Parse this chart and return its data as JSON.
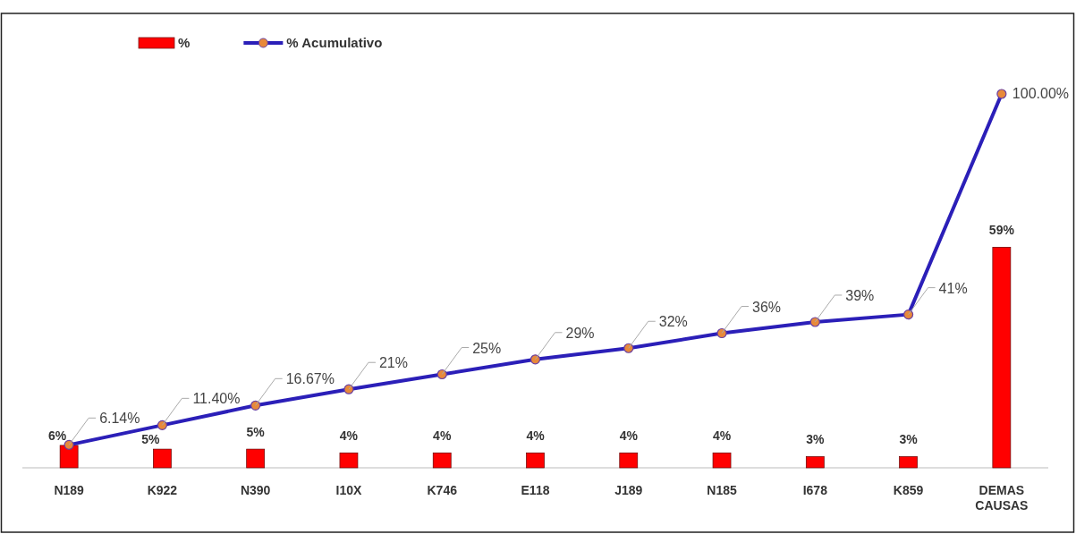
{
  "chart_data": {
    "type": "bar",
    "categories": [
      "N189",
      "K922",
      "N390",
      "I10X",
      "K746",
      "E118",
      "J189",
      "N185",
      "I678",
      "K859",
      "DEMAS CAUSAS"
    ],
    "series": [
      {
        "name": "%",
        "color": "#ff0000",
        "values": [
          6,
          5,
          5,
          4,
          4,
          4,
          4,
          4,
          3,
          3,
          59
        ],
        "value_labels": [
          "6%",
          "5%",
          "5%",
          "4%",
          "4%",
          "4%",
          "4%",
          "4%",
          "3%",
          "3%",
          "59%"
        ]
      },
      {
        "name": "% Acumulativo",
        "type": "line",
        "color": "#2b1fb8",
        "values": [
          6.14,
          11.4,
          16.67,
          21,
          25,
          29,
          32,
          36,
          39,
          41,
          100.0
        ],
        "value_labels": [
          "6.14%",
          "11.40%",
          "16.67%",
          "21%",
          "25%",
          "29%",
          "32%",
          "36%",
          "39%",
          "41%",
          "100.00%"
        ]
      }
    ],
    "marker": "circle",
    "legend": "top left"
  }
}
